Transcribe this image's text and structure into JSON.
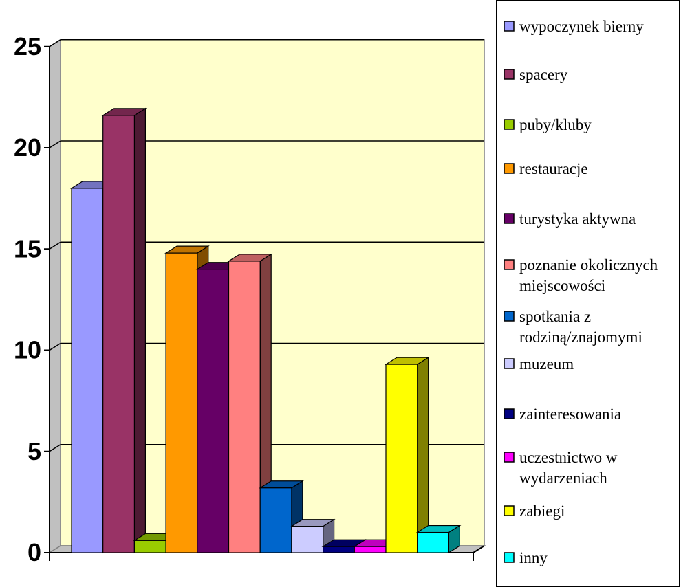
{
  "chart_data": {
    "type": "bar",
    "series": [
      {
        "name": "wypoczynek bierny",
        "values": [
          18
        ],
        "color": "#9999FF"
      },
      {
        "name": "spacery",
        "values": [
          21.6
        ],
        "color": "#993366"
      },
      {
        "name": "puby/kluby",
        "values": [
          0.6
        ],
        "color": "#99CC00"
      },
      {
        "name": "restauracje",
        "values": [
          14.8
        ],
        "color": "#FF9900"
      },
      {
        "name": "turystyka aktywna",
        "values": [
          14
        ],
        "color": "#660066"
      },
      {
        "name": "poznanie okolicznych miejscowości",
        "values": [
          14.4
        ],
        "color": "#FF8080"
      },
      {
        "name": "spotkania z rodziną/znajomymi",
        "values": [
          3.2
        ],
        "color": "#0066CC"
      },
      {
        "name": "muzeum",
        "values": [
          1.3
        ],
        "color": "#CCCCFF"
      },
      {
        "name": "zainteresowania",
        "values": [
          0.3
        ],
        "color": "#000080"
      },
      {
        "name": "uczestnictwo w wydarzeniach",
        "values": [
          0.3
        ],
        "color": "#FF00FF"
      },
      {
        "name": "zabiegi",
        "values": [
          9.3
        ],
        "color": "#FFFF00"
      },
      {
        "name": "inny",
        "values": [
          1
        ],
        "color": "#00FFFF"
      }
    ],
    "ylim": [
      0,
      25
    ],
    "yticks": [
      "0",
      "5",
      "10",
      "15",
      "20",
      "25"
    ],
    "grid": true,
    "legend_position": "right",
    "plot_background": "#FFFFCC"
  }
}
